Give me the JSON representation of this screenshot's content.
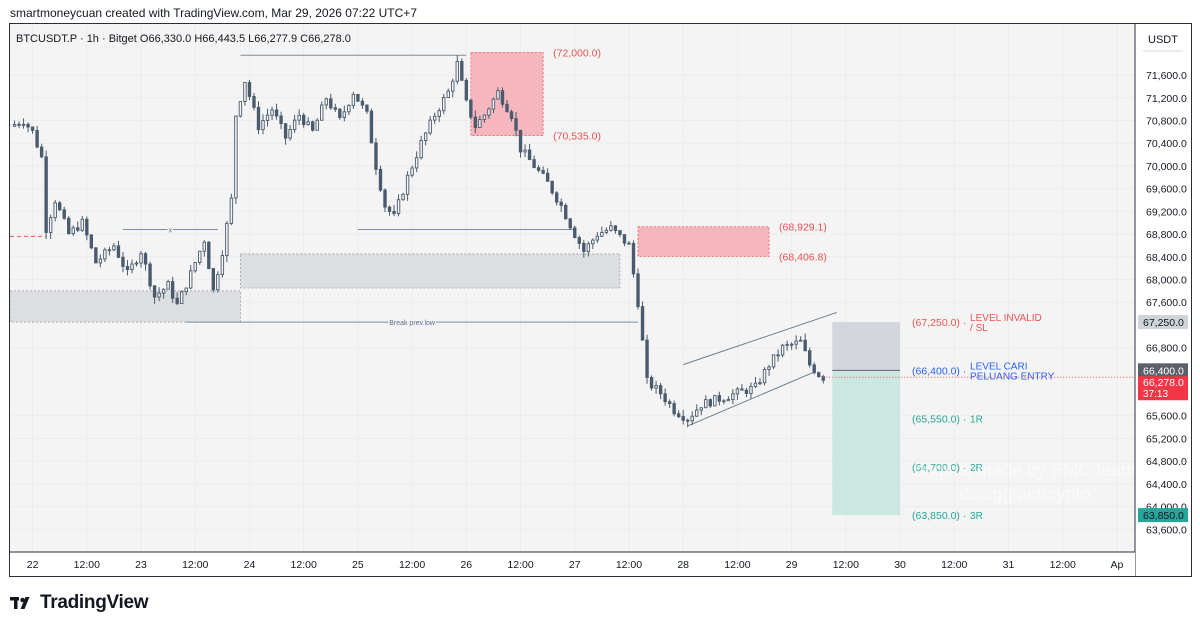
{
  "header": {
    "text": "smartmoneycuan created with TradingView.com, Mar 29, 2026 07:22 UTC+7"
  },
  "branding": {
    "logo_text": "TradingView",
    "logo_icon": "tradingview-logo-icon"
  },
  "watermark": {
    "line1": "original made by SMC team",
    "line2": "dsc.gg/actcrypto"
  },
  "chart_data": {
    "type": "candlestick",
    "symbol_line": {
      "symbol": "BTCUSDT.P · 1h · Bitget",
      "open": "O66,330.0",
      "high": "H66,443.5",
      "low": "L66,277.9",
      "close": "C66,278.0"
    },
    "currency": "USDT",
    "y_range": [
      63200,
      72500
    ],
    "y_ticks": [
      {
        "value": 71600,
        "label": "71,600.0"
      },
      {
        "value": 71200,
        "label": "71,200.0"
      },
      {
        "value": 70800,
        "label": "70,800.0"
      },
      {
        "value": 70400,
        "label": "70,400.0"
      },
      {
        "value": 70000,
        "label": "70,000.0"
      },
      {
        "value": 69600,
        "label": "69,600.0"
      },
      {
        "value": 69200,
        "label": "69,200.0"
      },
      {
        "value": 68800,
        "label": "68,800.0"
      },
      {
        "value": 68400,
        "label": "68,400.0"
      },
      {
        "value": 68000,
        "label": "68,000.0"
      },
      {
        "value": 67600,
        "label": "67,600.0"
      },
      {
        "value": 66800,
        "label": "66,800.0"
      },
      {
        "value": 65600,
        "label": "65,600.0"
      },
      {
        "value": 65200,
        "label": "65,200.0"
      },
      {
        "value": 64800,
        "label": "64,800.0"
      },
      {
        "value": 64400,
        "label": "64,400.0"
      },
      {
        "value": 64000,
        "label": "64,000.0"
      },
      {
        "value": 63600,
        "label": "63,600.0"
      }
    ],
    "x_range": [
      "2026-03-21T19:00",
      "2026-04-01T04:00"
    ],
    "x_ticks": [
      {
        "t": "2026-03-22T00:00",
        "label": "22"
      },
      {
        "t": "2026-03-22T12:00",
        "label": "12:00"
      },
      {
        "t": "2026-03-23T00:00",
        "label": "23"
      },
      {
        "t": "2026-03-23T12:00",
        "label": "12:00"
      },
      {
        "t": "2026-03-24T00:00",
        "label": "24"
      },
      {
        "t": "2026-03-24T12:00",
        "label": "12:00"
      },
      {
        "t": "2026-03-25T00:00",
        "label": "25"
      },
      {
        "t": "2026-03-25T12:00",
        "label": "12:00"
      },
      {
        "t": "2026-03-26T00:00",
        "label": "26"
      },
      {
        "t": "2026-03-26T12:00",
        "label": "12:00"
      },
      {
        "t": "2026-03-27T00:00",
        "label": "27"
      },
      {
        "t": "2026-03-27T12:00",
        "label": "12:00"
      },
      {
        "t": "2026-03-28T00:00",
        "label": "28"
      },
      {
        "t": "2026-03-28T12:00",
        "label": "12:00"
      },
      {
        "t": "2026-03-29T00:00",
        "label": "29"
      },
      {
        "t": "2026-03-29T12:00",
        "label": "12:00"
      },
      {
        "t": "2026-03-30T00:00",
        "label": "30"
      },
      {
        "t": "2026-03-30T12:00",
        "label": "12:00"
      },
      {
        "t": "2026-03-31T00:00",
        "label": "31"
      },
      {
        "t": "2026-03-31T12:00",
        "label": "12:00"
      },
      {
        "t": "2026-04-01T00:00",
        "label": "Ap"
      }
    ],
    "price_path": [
      [
        "2026-03-21T19:00",
        70700
      ],
      [
        "2026-03-21T22:00",
        70800
      ],
      [
        "2026-03-22T00:00",
        70600
      ],
      [
        "2026-03-22T02:00",
        70150
      ],
      [
        "2026-03-22T03:00",
        68900
      ],
      [
        "2026-03-22T05:00",
        69400
      ],
      [
        "2026-03-22T08:00",
        68800
      ],
      [
        "2026-03-22T11:00",
        69000
      ],
      [
        "2026-03-22T14:00",
        68300
      ],
      [
        "2026-03-22T18:00",
        68600
      ],
      [
        "2026-03-22T21:00",
        68100
      ],
      [
        "2026-03-23T00:00",
        68500
      ],
      [
        "2026-03-23T03:00",
        67700
      ],
      [
        "2026-03-23T06:00",
        67900
      ],
      [
        "2026-03-23T08:00",
        67550
      ],
      [
        "2026-03-23T11:00",
        68100
      ],
      [
        "2026-03-23T14:00",
        68700
      ],
      [
        "2026-03-23T16:00",
        67800
      ],
      [
        "2026-03-23T18:00",
        68500
      ],
      [
        "2026-03-23T20:00",
        69400
      ],
      [
        "2026-03-23T21:00",
        70900
      ],
      [
        "2026-03-23T23:00",
        71500
      ],
      [
        "2026-03-24T02:00",
        70700
      ],
      [
        "2026-03-24T05:00",
        71000
      ],
      [
        "2026-03-24T08:00",
        70500
      ],
      [
        "2026-03-24T11:00",
        70900
      ],
      [
        "2026-03-24T14:00",
        70600
      ],
      [
        "2026-03-24T17:00",
        71200
      ],
      [
        "2026-03-24T20:00",
        70800
      ],
      [
        "2026-03-24T23:00",
        71300
      ],
      [
        "2026-03-25T02:00",
        70900
      ],
      [
        "2026-03-25T04:00",
        70000
      ],
      [
        "2026-03-25T06:00",
        69300
      ],
      [
        "2026-03-25T08:00",
        69100
      ],
      [
        "2026-03-25T11:00",
        69800
      ],
      [
        "2026-03-25T14:00",
        70400
      ],
      [
        "2026-03-25T17:00",
        70900
      ],
      [
        "2026-03-25T20:00",
        71300
      ],
      [
        "2026-03-25T22:00",
        71800
      ],
      [
        "2026-03-26T00:00",
        71100
      ],
      [
        "2026-03-26T02:00",
        70700
      ],
      [
        "2026-03-26T04:00",
        70900
      ],
      [
        "2026-03-26T07:00",
        71300
      ],
      [
        "2026-03-26T10:00",
        70900
      ],
      [
        "2026-03-26T12:00",
        70300
      ],
      [
        "2026-03-26T15:00",
        70000
      ],
      [
        "2026-03-26T18:00",
        69700
      ],
      [
        "2026-03-26T21:00",
        69300
      ],
      [
        "2026-03-27T00:00",
        68800
      ],
      [
        "2026-03-27T02:00",
        68500
      ],
      [
        "2026-03-27T05:00",
        68800
      ],
      [
        "2026-03-27T08:00",
        68900
      ],
      [
        "2026-03-27T12:00",
        68600
      ],
      [
        "2026-03-27T14:00",
        67600
      ],
      [
        "2026-03-27T16:00",
        66200
      ],
      [
        "2026-03-27T19:00",
        66000
      ],
      [
        "2026-03-27T22:00",
        65700
      ],
      [
        "2026-03-28T01:00",
        65550
      ],
      [
        "2026-03-28T04:00",
        65800
      ],
      [
        "2026-03-28T08:00",
        65900
      ],
      [
        "2026-03-28T12:00",
        66000
      ],
      [
        "2026-03-28T16:00",
        66100
      ],
      [
        "2026-03-28T19:00",
        66500
      ],
      [
        "2026-03-28T22:00",
        66800
      ],
      [
        "2026-03-29T02:00",
        66900
      ],
      [
        "2026-03-29T04:00",
        66500
      ],
      [
        "2026-03-29T06:00",
        66330
      ],
      [
        "2026-03-29T07:00",
        66278
      ]
    ],
    "last_price": {
      "value": 66278,
      "label": "66,278.0",
      "countdown": "37:13"
    },
    "axis_price_tags": [
      {
        "value": 67250,
        "label": "67,250.0",
        "bg": "#cfd3da",
        "color": "#131722"
      },
      {
        "value": 66400,
        "label": "66,400.0",
        "bg": "#5d606b",
        "color": "#ffffff"
      },
      {
        "value": 63850,
        "label": "63,850.0",
        "bg": "#26a69a",
        "color": "#131722"
      }
    ],
    "zones": [
      {
        "kind": "supply",
        "t1": "2026-03-26T01:00",
        "t2": "2026-03-26T17:00",
        "p1": 72000,
        "p2": 70535,
        "fill": "#f7b3bb",
        "stroke": "#ef5350",
        "label_top": "(72,000.0)",
        "label_bottom": "(70,535.0)"
      },
      {
        "kind": "supply",
        "t1": "2026-03-27T14:00",
        "t2": "2026-03-28T19:00",
        "p1": 68929.1,
        "p2": 68406.8,
        "fill": "#f7b3bb",
        "stroke": "#ef5350",
        "label_top": "(68,929.1)",
        "label_bottom": "(68,406.8)"
      },
      {
        "kind": "demand",
        "t1": "2026-03-21T19:00",
        "t2": "2026-03-23T22:00",
        "p1": 67800,
        "p2": 67250,
        "fill": "#dcdde0",
        "stroke": "#9598a1"
      },
      {
        "kind": "demand",
        "t1": "2026-03-23T22:00",
        "t2": "2026-03-27T10:00",
        "p1": 68450,
        "p2": 67850,
        "fill": "#dcdde0",
        "stroke": "#9598a1"
      }
    ],
    "position": {
      "t1": "2026-03-29T09:00",
      "t2": "2026-03-30T00:00",
      "sl": 67250,
      "entry": 66400,
      "target": 63850,
      "levels": [
        {
          "value": 67250,
          "label": "(67,250.0) ·",
          "note1": "LEVEL INVALID",
          "note2": "/ SL",
          "color": "#ef5350"
        },
        {
          "value": 66400,
          "label": "(66,400.0) ·",
          "note1": "LEVEL CARI",
          "note2": "PELUANG ENTRY",
          "color": "#2962ff"
        },
        {
          "value": 65550,
          "label": "(65,550.0) ·",
          "note1": "1R",
          "note2": "",
          "color": "#26a69a"
        },
        {
          "value": 64700,
          "label": "(64,700.0) ·",
          "note1": "2R",
          "note2": "",
          "color": "#26a69a"
        },
        {
          "value": 63850,
          "label": "(63,850.0) ·",
          "note1": "3R",
          "note2": "",
          "color": "#26a69a"
        }
      ]
    },
    "annotations": [
      {
        "text": "Break prev.low",
        "t1": "2026-03-23T10:00",
        "t2": "2026-03-27T14:00",
        "price": 67250
      },
      {
        "text": "x",
        "t1": "2026-03-22T20:00",
        "t2": "2026-03-23T17:00",
        "price": 68880
      }
    ],
    "lines": [
      {
        "name": "prev-high-line",
        "t1": "2026-03-23T22:00",
        "t2": "2026-03-26T00:00",
        "price": 71950
      },
      {
        "name": "mid-low-line",
        "t1": "2026-03-25T00:00",
        "t2": "2026-03-27T00:00",
        "price": 68880
      },
      {
        "name": "dashed-prev-level",
        "t1": "2026-03-21T19:00",
        "t2": "2026-03-22T03:00",
        "price": 68760,
        "dashed": true
      }
    ],
    "channel": {
      "upper": [
        [
          "2026-03-28T00:00",
          66500
        ],
        [
          "2026-03-29T10:00",
          67420
        ]
      ],
      "lower": [
        [
          "2026-03-28T01:00",
          65420
        ],
        [
          "2026-03-29T05:00",
          66370
        ]
      ]
    },
    "colors": {
      "up": "#26a69a",
      "candle": "#4a5b6e",
      "down": "#e57373",
      "grid": "#e0e3eb"
    }
  }
}
